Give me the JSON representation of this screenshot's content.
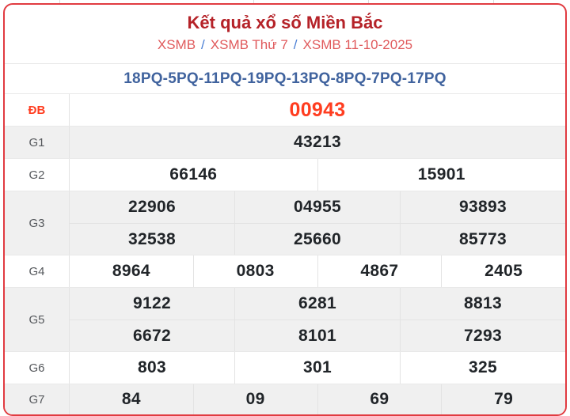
{
  "header": {
    "title": "Kết quả xổ số Miền Bắc",
    "separator": "/",
    "breadcrumb": [
      {
        "label": "XSMB"
      },
      {
        "label": "XSMB Thứ 7"
      },
      {
        "label": "XSMB 11-10-2025"
      }
    ]
  },
  "codes": {
    "text": "18PQ-5PQ-11PQ-19PQ-13PQ-8PQ-7PQ-17PQ"
  },
  "results": {
    "rows": [
      {
        "label": "ĐB",
        "lines": [
          [
            "00943"
          ]
        ]
      },
      {
        "label": "G1",
        "lines": [
          [
            "43213"
          ]
        ]
      },
      {
        "label": "G2",
        "lines": [
          [
            "66146",
            "15901"
          ]
        ]
      },
      {
        "label": "G3",
        "lines": [
          [
            "22906",
            "04955",
            "93893"
          ],
          [
            "32538",
            "25660",
            "85773"
          ]
        ]
      },
      {
        "label": "G4",
        "lines": [
          [
            "8964",
            "0803",
            "4867",
            "2405"
          ]
        ]
      },
      {
        "label": "G5",
        "lines": [
          [
            "9122",
            "6281",
            "8813"
          ],
          [
            "6672",
            "8101",
            "7293"
          ]
        ]
      },
      {
        "label": "G6",
        "lines": [
          [
            "803",
            "301",
            "325"
          ]
        ]
      },
      {
        "label": "G7",
        "lines": [
          [
            "84",
            "09",
            "69",
            "79"
          ]
        ]
      }
    ]
  },
  "colors": {
    "card_border": "#e13b41",
    "title_red": "#b52228",
    "breadcrumb_red": "#e05a5c",
    "separator_blue": "#4a7fd4",
    "codes_blue": "#40639e",
    "special_orange_red": "#ff3d20",
    "label_grey": "#55585c",
    "value_dark": "#212529",
    "alt_row_grey": "#f0f0f0",
    "grid_line": "#e3e3e3"
  }
}
